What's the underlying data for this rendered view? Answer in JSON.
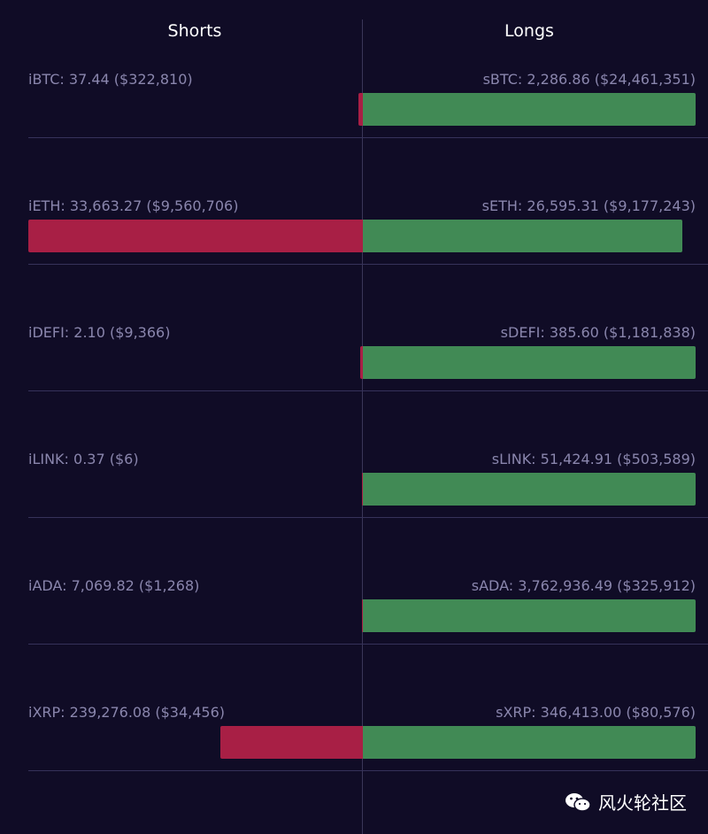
{
  "chart_data": {
    "type": "bar",
    "orientation": "horizontal-diverging",
    "headers": {
      "left": "Shorts",
      "right": "Longs"
    },
    "colors": {
      "short": "#a81f45",
      "long": "#418a55"
    },
    "rows": [
      {
        "short_label": "iBTC: 37.44 ($322,810)",
        "long_label": "sBTC: 2,286.86 ($24,461,351)",
        "short_value": 322810,
        "long_value": 24461351
      },
      {
        "short_label": "iETH: 33,663.27 ($9,560,706)",
        "long_label": "sETH: 26,595.31 ($9,177,243)",
        "short_value": 9560706,
        "long_value": 9177243
      },
      {
        "short_label": "iDEFI: 2.10 ($9,366)",
        "long_label": "sDEFI: 385.60 ($1,181,838)",
        "short_value": 9366,
        "long_value": 1181838
      },
      {
        "short_label": "iLINK: 0.37 ($6)",
        "long_label": "sLINK: 51,424.91 ($503,589)",
        "short_value": 6,
        "long_value": 503589
      },
      {
        "short_label": "iADA: 7,069.82 ($1,268)",
        "long_label": "sADA: 3,762,936.49 ($325,912)",
        "short_value": 1268,
        "long_value": 325912
      },
      {
        "short_label": "iXRP: 239,276.08 ($34,456)",
        "long_label": "sXRP: 346,413.00 ($80,576)",
        "short_value": 34456,
        "long_value": 80576
      }
    ]
  },
  "watermark": {
    "text": "风火轮社区",
    "icon": "wechat-icon"
  }
}
